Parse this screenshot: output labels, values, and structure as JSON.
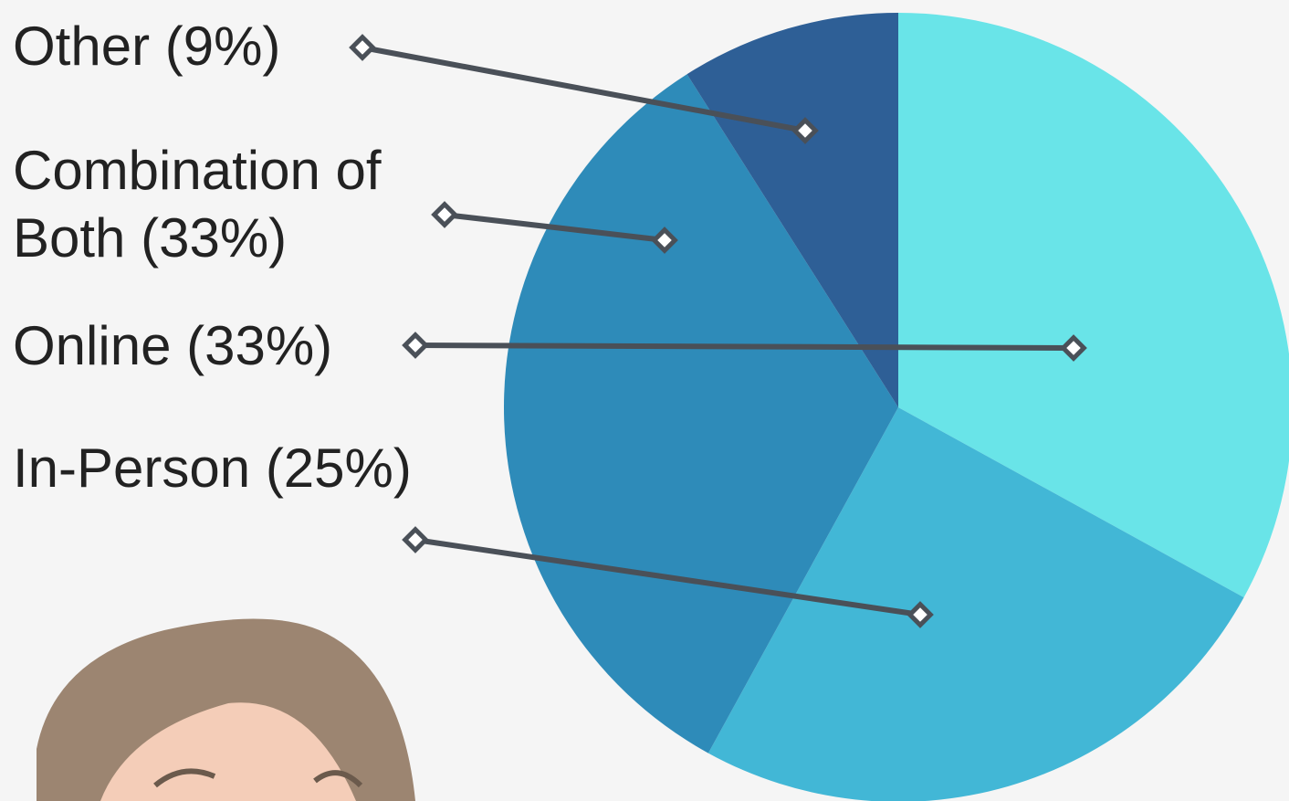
{
  "chart_data": {
    "type": "pie",
    "categories": [
      "Online",
      "In-Person",
      "Combination of Both",
      "Other"
    ],
    "values": [
      33,
      25,
      33,
      9
    ],
    "value_labels": [
      "(33%)",
      "(25%)",
      "(33%)",
      "(9%)"
    ],
    "colors": [
      "#69e4e8",
      "#42b7d6",
      "#2e8bb9",
      "#2e5f96"
    ]
  }
}
